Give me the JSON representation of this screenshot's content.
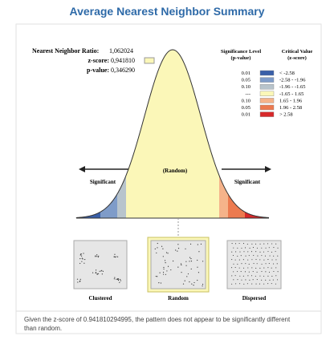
{
  "header": {
    "title": "Average Nearest Neighbor Summary"
  },
  "stats": {
    "ratio_label": "Nearest Neighbor Ratio:",
    "ratio": "1,062024",
    "z_label": "z-score:",
    "z": "0,941810",
    "p_label": "p-value:",
    "p": "0,346290"
  },
  "legend": {
    "p_head": [
      "Significance Level",
      "(p-value)"
    ],
    "z_head": [
      "Critical Value",
      "(z-score)"
    ],
    "rows": [
      {
        "p": "0.01",
        "z": "< -2.58",
        "color": "#3a5fa8"
      },
      {
        "p": "0.05",
        "z": "-2.58 - -1.96",
        "color": "#7f9cc9"
      },
      {
        "p": "0.10",
        "z": "-1.96 - -1.65",
        "color": "#b8c4cc"
      },
      {
        "p": "---",
        "z": "-1.65 - 1.65",
        "color": "#fbf7b8"
      },
      {
        "p": "0.10",
        "z": "1.65 - 1.96",
        "color": "#f5b38a"
      },
      {
        "p": "0.05",
        "z": "1.96 - 2.58",
        "color": "#ec7a4f"
      },
      {
        "p": "0.01",
        "z": "> 2.58",
        "color": "#d7282a"
      }
    ]
  },
  "curve": {
    "center": "(Random)",
    "left": "Significant",
    "right": "Significant"
  },
  "patterns": [
    "Clustered",
    "Random",
    "Dispersed"
  ],
  "message": [
    "Given the z-score of 0.941810294995, the pattern does not appear to be significantly different",
    "than random."
  ]
}
